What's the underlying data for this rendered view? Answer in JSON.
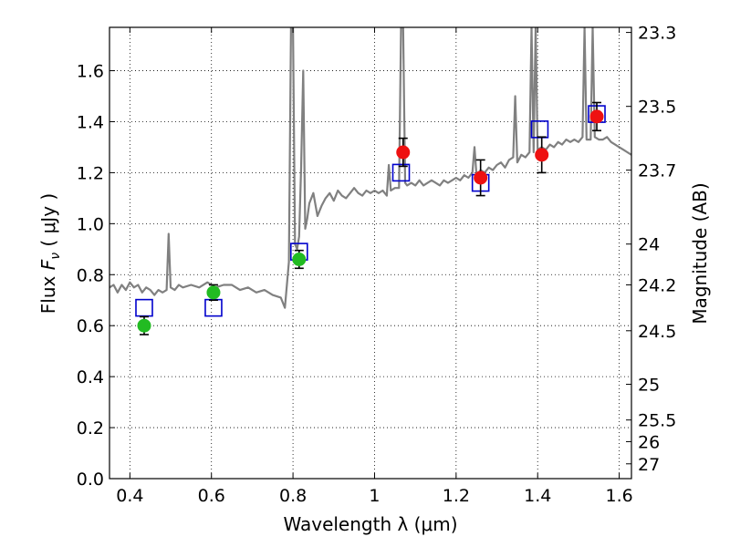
{
  "chart_data": {
    "type": "scatter",
    "xlabel": "Wavelength  λ (μm)",
    "ylabel": "Flux  F_ν  ( μJy )",
    "ylabel_parts": {
      "prefix": "Flux  ",
      "symbol": "F",
      "subscript": "ν",
      "suffix": "  ( μJy )"
    },
    "right_ylabel": "Magnitude (AB)",
    "xlim": [
      0.35,
      1.63
    ],
    "ylim": [
      0.0,
      1.77
    ],
    "grid": true,
    "x_ticks": [
      0.4,
      0.6,
      0.8,
      1.0,
      1.2,
      1.4,
      1.6
    ],
    "x_tick_labels": [
      "0.4",
      "0.6",
      "0.8",
      "1",
      "1.2",
      "1.4",
      "1.6"
    ],
    "y_ticks": [
      0.0,
      0.2,
      0.4,
      0.6,
      0.8,
      1.0,
      1.2,
      1.4,
      1.6
    ],
    "y_tick_labels": [
      "0.0",
      "0.2",
      "0.4",
      "0.6",
      "0.8",
      "1.0",
      "1.2",
      "1.4",
      "1.6"
    ],
    "mag_ticks": [
      {
        "label": "23.3",
        "flux": 1.75
      },
      {
        "label": "23.5",
        "flux": 1.46
      },
      {
        "label": "23.7",
        "flux": 1.21
      },
      {
        "label": "24",
        "flux": 0.92
      },
      {
        "label": "24.2",
        "flux": 0.76
      },
      {
        "label": "24.5",
        "flux": 0.58
      },
      {
        "label": "25",
        "flux": 0.37
      },
      {
        "label": "25.5",
        "flux": 0.23
      },
      {
        "label": "26",
        "flux": 0.145
      },
      {
        "label": "27",
        "flux": 0.058
      }
    ],
    "model_spectrum": {
      "name": "model",
      "color": "#808080",
      "points": [
        [
          0.35,
          0.75
        ],
        [
          0.36,
          0.76
        ],
        [
          0.37,
          0.73
        ],
        [
          0.38,
          0.76
        ],
        [
          0.39,
          0.74
        ],
        [
          0.4,
          0.77
        ],
        [
          0.41,
          0.75
        ],
        [
          0.42,
          0.76
        ],
        [
          0.43,
          0.73
        ],
        [
          0.44,
          0.75
        ],
        [
          0.45,
          0.74
        ],
        [
          0.46,
          0.72
        ],
        [
          0.47,
          0.74
        ],
        [
          0.48,
          0.73
        ],
        [
          0.49,
          0.74
        ],
        [
          0.495,
          0.96
        ],
        [
          0.5,
          0.75
        ],
        [
          0.51,
          0.74
        ],
        [
          0.52,
          0.76
        ],
        [
          0.53,
          0.75
        ],
        [
          0.55,
          0.76
        ],
        [
          0.57,
          0.75
        ],
        [
          0.59,
          0.77
        ],
        [
          0.61,
          0.75
        ],
        [
          0.63,
          0.76
        ],
        [
          0.65,
          0.76
        ],
        [
          0.67,
          0.74
        ],
        [
          0.69,
          0.75
        ],
        [
          0.71,
          0.73
        ],
        [
          0.73,
          0.74
        ],
        [
          0.75,
          0.72
        ],
        [
          0.77,
          0.71
        ],
        [
          0.78,
          0.67
        ],
        [
          0.785,
          0.76
        ],
        [
          0.79,
          0.85
        ],
        [
          0.795,
          1.77
        ],
        [
          0.8,
          1.77
        ],
        [
          0.805,
          0.92
        ],
        [
          0.81,
          0.9
        ],
        [
          0.815,
          0.95
        ],
        [
          0.82,
          1.22
        ],
        [
          0.825,
          1.6
        ],
        [
          0.83,
          0.98
        ],
        [
          0.835,
          1.02
        ],
        [
          0.84,
          1.08
        ],
        [
          0.85,
          1.12
        ],
        [
          0.86,
          1.03
        ],
        [
          0.87,
          1.07
        ],
        [
          0.88,
          1.1
        ],
        [
          0.89,
          1.12
        ],
        [
          0.9,
          1.09
        ],
        [
          0.91,
          1.13
        ],
        [
          0.92,
          1.11
        ],
        [
          0.93,
          1.1
        ],
        [
          0.94,
          1.12
        ],
        [
          0.95,
          1.14
        ],
        [
          0.96,
          1.12
        ],
        [
          0.97,
          1.11
        ],
        [
          0.98,
          1.13
        ],
        [
          0.99,
          1.12
        ],
        [
          1.0,
          1.13
        ],
        [
          1.01,
          1.12
        ],
        [
          1.02,
          1.13
        ],
        [
          1.03,
          1.11
        ],
        [
          1.035,
          1.23
        ],
        [
          1.04,
          1.13
        ],
        [
          1.05,
          1.14
        ],
        [
          1.06,
          1.14
        ],
        [
          1.065,
          1.77
        ],
        [
          1.07,
          1.77
        ],
        [
          1.075,
          1.16
        ],
        [
          1.08,
          1.15
        ],
        [
          1.09,
          1.16
        ],
        [
          1.1,
          1.15
        ],
        [
          1.11,
          1.17
        ],
        [
          1.12,
          1.15
        ],
        [
          1.13,
          1.16
        ],
        [
          1.14,
          1.17
        ],
        [
          1.15,
          1.16
        ],
        [
          1.16,
          1.15
        ],
        [
          1.17,
          1.17
        ],
        [
          1.18,
          1.16
        ],
        [
          1.19,
          1.17
        ],
        [
          1.2,
          1.18
        ],
        [
          1.21,
          1.17
        ],
        [
          1.22,
          1.19
        ],
        [
          1.23,
          1.18
        ],
        [
          1.24,
          1.2
        ],
        [
          1.245,
          1.3
        ],
        [
          1.25,
          1.19
        ],
        [
          1.26,
          1.21
        ],
        [
          1.27,
          1.2
        ],
        [
          1.28,
          1.22
        ],
        [
          1.29,
          1.21
        ],
        [
          1.3,
          1.23
        ],
        [
          1.31,
          1.24
        ],
        [
          1.32,
          1.22
        ],
        [
          1.33,
          1.25
        ],
        [
          1.34,
          1.26
        ],
        [
          1.345,
          1.5
        ],
        [
          1.35,
          1.24
        ],
        [
          1.36,
          1.27
        ],
        [
          1.37,
          1.26
        ],
        [
          1.38,
          1.28
        ],
        [
          1.385,
          1.77
        ],
        [
          1.39,
          1.28
        ],
        [
          1.395,
          1.77
        ],
        [
          1.4,
          1.29
        ],
        [
          1.41,
          1.3
        ],
        [
          1.42,
          1.29
        ],
        [
          1.43,
          1.31
        ],
        [
          1.44,
          1.3
        ],
        [
          1.45,
          1.32
        ],
        [
          1.46,
          1.31
        ],
        [
          1.47,
          1.33
        ],
        [
          1.48,
          1.32
        ],
        [
          1.49,
          1.33
        ],
        [
          1.5,
          1.32
        ],
        [
          1.51,
          1.34
        ],
        [
          1.515,
          1.77
        ],
        [
          1.52,
          1.33
        ],
        [
          1.53,
          1.33
        ],
        [
          1.535,
          1.77
        ],
        [
          1.54,
          1.34
        ],
        [
          1.55,
          1.33
        ],
        [
          1.56,
          1.33
        ],
        [
          1.57,
          1.34
        ],
        [
          1.58,
          1.32
        ],
        [
          1.59,
          1.31
        ],
        [
          1.6,
          1.3
        ],
        [
          1.61,
          1.29
        ],
        [
          1.62,
          1.28
        ],
        [
          1.63,
          1.27
        ]
      ]
    },
    "series": [
      {
        "name": "model_bandpass",
        "marker": "open-square",
        "color": "#0000cc",
        "x": [
          0.435,
          0.605,
          0.815,
          1.065,
          1.26,
          1.405,
          1.545
        ],
        "y": [
          0.67,
          0.67,
          0.89,
          1.2,
          1.16,
          1.37,
          1.43
        ]
      },
      {
        "name": "observed_optical",
        "marker": "filled-circle",
        "color": "#22bb22",
        "x": [
          0.435,
          0.605,
          0.815
        ],
        "y": [
          0.6,
          0.73,
          0.86
        ],
        "err": [
          0.035,
          0.03,
          0.035
        ]
      },
      {
        "name": "observed_nir",
        "marker": "filled-circle",
        "color": "#ee1111",
        "x": [
          1.07,
          1.26,
          1.41,
          1.545
        ],
        "y": [
          1.28,
          1.18,
          1.27,
          1.42
        ],
        "err": [
          0.055,
          0.07,
          0.07,
          0.055
        ]
      }
    ]
  }
}
